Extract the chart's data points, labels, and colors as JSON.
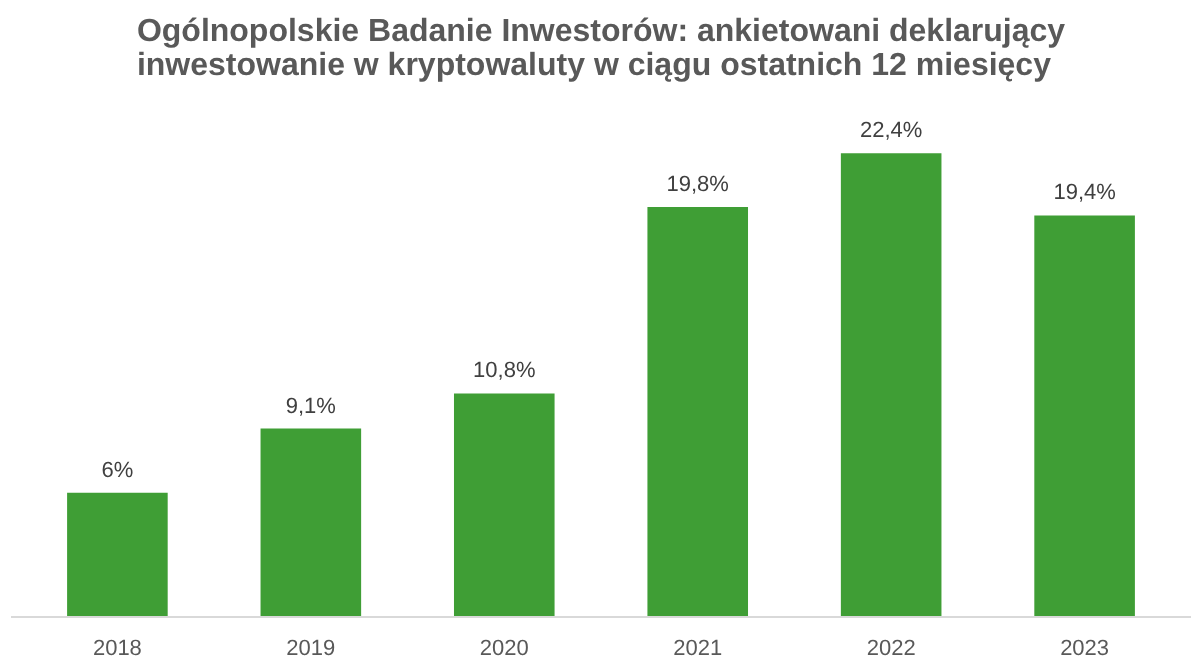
{
  "chart_data": {
    "type": "bar",
    "title": "Ogólnopolskie Badanie Inwestorów: ankietowani deklarujący\ninwestowanie w kryptowaluty w ciągu ostatnich 12 miesięcy",
    "categories": [
      "2018",
      "2019",
      "2020",
      "2021",
      "2022",
      "2023"
    ],
    "values": [
      6,
      9.1,
      10.8,
      19.8,
      22.4,
      19.4
    ],
    "value_labels": [
      "6%",
      "9,1%",
      "10,8%",
      "19,8%",
      "22,4%",
      "19,4%"
    ],
    "color": "#3f9e35"
  }
}
